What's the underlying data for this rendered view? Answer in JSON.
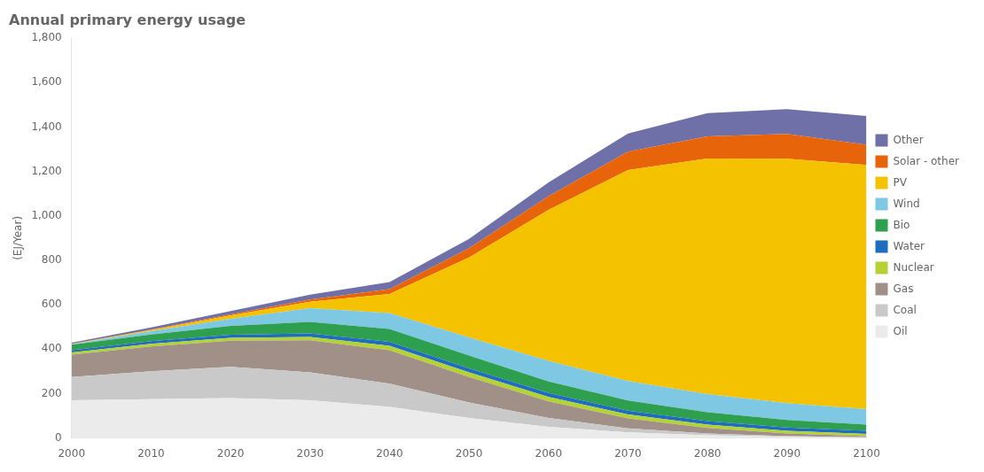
{
  "chart_data": {
    "type": "area",
    "title": "Annual primary energy usage",
    "y_label": "(EJ/Year)",
    "x": [
      2000,
      2010,
      2020,
      2030,
      2040,
      2050,
      2060,
      2070,
      2080,
      2090,
      2100
    ],
    "xlim": [
      2000,
      2100
    ],
    "xticks": [
      2000,
      2010,
      2020,
      2030,
      2040,
      2050,
      2060,
      2070,
      2080,
      2090,
      2100
    ],
    "ylim": [
      0,
      1800
    ],
    "yticks": [
      0,
      200,
      400,
      600,
      800,
      {
        "value": 1000,
        "label": "1,000"
      },
      {
        "value": 1200,
        "label": "1,200"
      },
      {
        "value": 1400,
        "label": "1,400"
      },
      {
        "value": 1600,
        "label": "1,600"
      },
      {
        "value": 1800,
        "label": "1,800"
      }
    ],
    "stacked": true,
    "grid": false,
    "legend": "right",
    "series": [
      {
        "name": "Oil",
        "color": "#ebebeb",
        "values": [
          170,
          175,
          180,
          170,
          140,
          90,
          50,
          25,
          12,
          5,
          2
        ]
      },
      {
        "name": "Coal",
        "color": "#c9c9c9",
        "values": [
          105,
          125,
          140,
          125,
          105,
          70,
          40,
          18,
          8,
          3,
          1
        ]
      },
      {
        "name": "Gas",
        "color": "#a09088",
        "values": [
          100,
          112,
          118,
          145,
          150,
          115,
          75,
          45,
          25,
          12,
          5
        ]
      },
      {
        "name": "Nuclear",
        "color": "#b5d235",
        "values": [
          10,
          12,
          13,
          15,
          20,
          20,
          20,
          18,
          15,
          12,
          10
        ]
      },
      {
        "name": "Water",
        "color": "#1f6dbf",
        "values": [
          10,
          12,
          14,
          16,
          18,
          18,
          18,
          17,
          16,
          15,
          14
        ]
      },
      {
        "name": "Bio",
        "color": "#2e9e4f",
        "values": [
          25,
          30,
          40,
          52,
          58,
          58,
          52,
          46,
          40,
          34,
          28
        ]
      },
      {
        "name": "Wind",
        "color": "#7ec8e3",
        "values": [
          2,
          15,
          32,
          62,
          72,
          82,
          92,
          88,
          82,
          76,
          70
        ]
      },
      {
        "name": "PV",
        "color": "#f5c200",
        "values": [
          1,
          5,
          15,
          28,
          85,
          360,
          680,
          950,
          1060,
          1100,
          1100
        ]
      },
      {
        "name": "Solar - other",
        "color": "#e8640a",
        "values": [
          1,
          2,
          5,
          10,
          22,
          42,
          62,
          82,
          100,
          112,
          90
        ]
      },
      {
        "name": "Other",
        "color": "#7070a8",
        "values": [
          5,
          10,
          15,
          22,
          32,
          42,
          62,
          82,
          105,
          112,
          130
        ]
      }
    ]
  }
}
